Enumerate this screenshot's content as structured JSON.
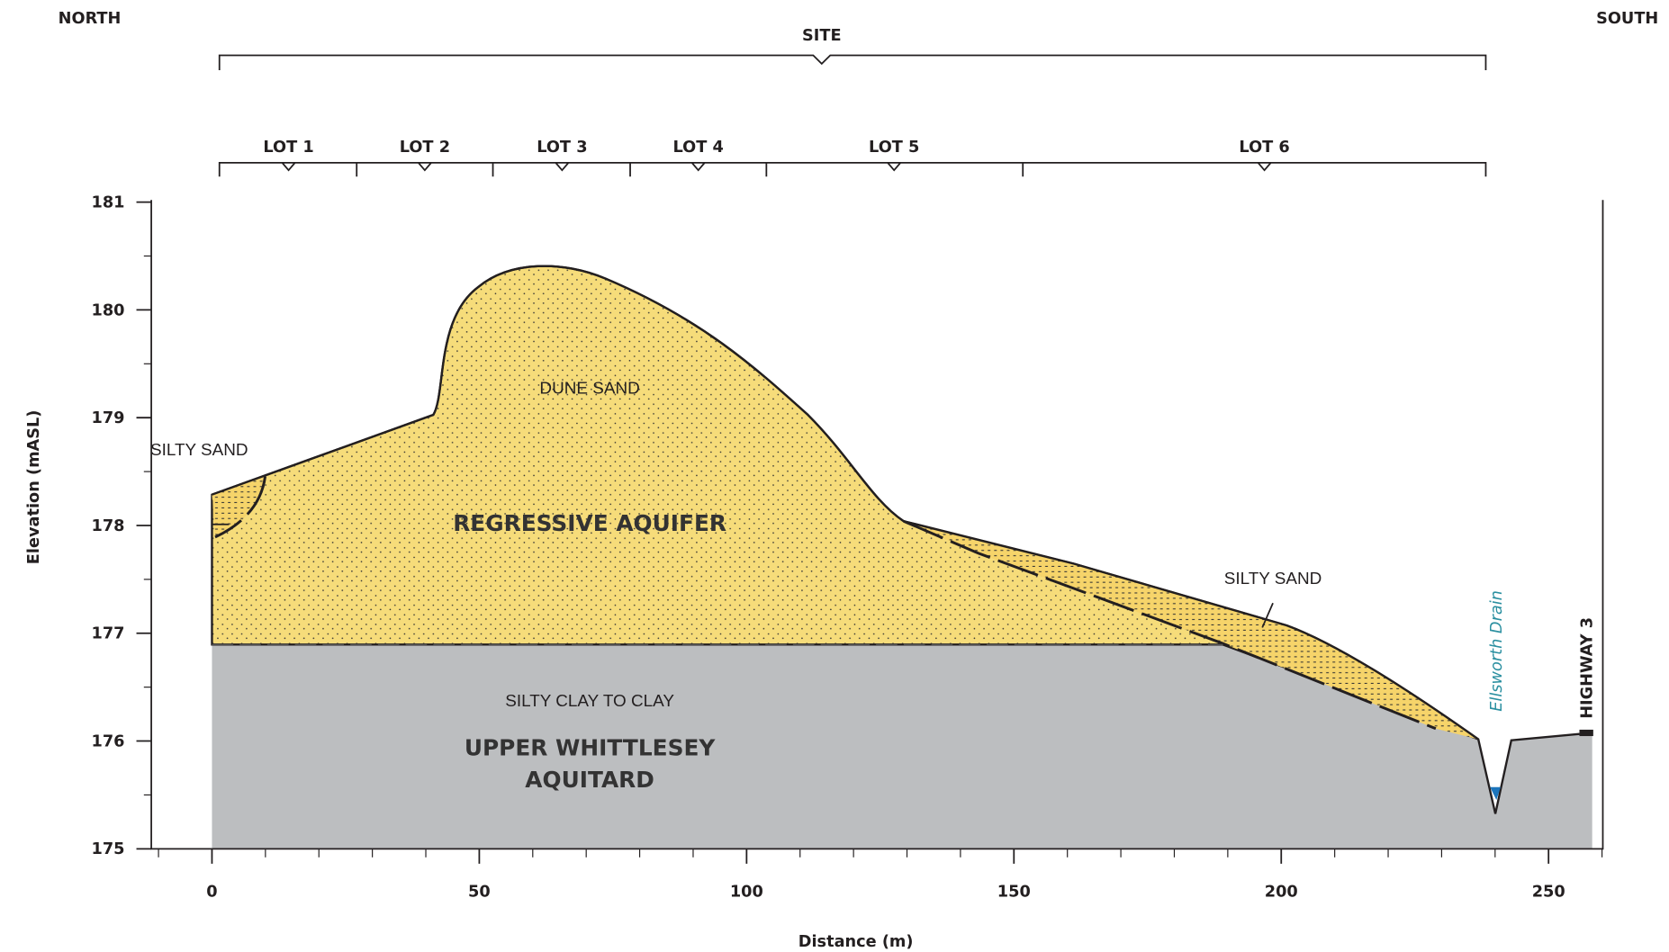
{
  "orientation": {
    "left": "NORTH",
    "right": "SOUTH"
  },
  "site": {
    "label": "SITE"
  },
  "lots": [
    "LOT 1",
    "LOT 2",
    "LOT 3",
    "LOT 4",
    "LOT 5",
    "LOT 6"
  ],
  "axes": {
    "x_label": "Distance (m)",
    "y_label": "Elevation (mASL)",
    "xticks": [
      0,
      50,
      100,
      150,
      200,
      250
    ],
    "yticks": [
      175,
      176,
      177,
      178,
      179,
      180,
      181
    ]
  },
  "units": {
    "dune_sand": "DUNE SAND",
    "regressive_aquifer": "REGRESSIVE AQUIFER",
    "silty_sand_north": "SILTY SAND",
    "silty_sand_south": "SILTY SAND",
    "silty_clay": "SILTY CLAY TO CLAY",
    "aquitard": [
      "UPPER WHITTLESEY",
      "AQUITARD"
    ]
  },
  "features": {
    "drain": "Ellsworth Drain",
    "highway": "HIGHWAY 3"
  }
}
